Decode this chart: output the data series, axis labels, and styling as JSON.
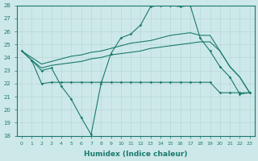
{
  "xlabel": "Humidex (Indice chaleur)",
  "bg_color": "#cde8e8",
  "grid_color": "#b8d8d8",
  "line_color": "#1a7a6e",
  "xlim": [
    -0.5,
    23.5
  ],
  "ylim": [
    18,
    28
  ],
  "yticks": [
    18,
    19,
    20,
    21,
    22,
    23,
    24,
    25,
    26,
    27,
    28
  ],
  "xticks": [
    0,
    1,
    2,
    3,
    4,
    5,
    6,
    7,
    8,
    9,
    10,
    11,
    12,
    13,
    14,
    15,
    16,
    17,
    18,
    19,
    20,
    21,
    22,
    23
  ],
  "line1_x": [
    0,
    1,
    2,
    3,
    4,
    5,
    6,
    7,
    8,
    9,
    10,
    11,
    12,
    13,
    14,
    15,
    16,
    17,
    18,
    19,
    20,
    21,
    22,
    23
  ],
  "line1_y": [
    24.5,
    23.8,
    23.0,
    23.2,
    21.8,
    20.8,
    19.4,
    18.1,
    22.0,
    24.3,
    25.5,
    25.8,
    26.5,
    27.9,
    28.0,
    28.0,
    27.9,
    28.0,
    25.5,
    24.5,
    23.3,
    22.5,
    21.2,
    21.3
  ],
  "line2_x": [
    1,
    2,
    3,
    4,
    5,
    6,
    7,
    8,
    9,
    10,
    11,
    12,
    13,
    14,
    15,
    16,
    17,
    18,
    19,
    20,
    21,
    22,
    23
  ],
  "line2_y": [
    23.8,
    22.0,
    22.1,
    22.1,
    22.1,
    22.1,
    22.1,
    22.1,
    22.1,
    22.1,
    22.1,
    22.1,
    22.1,
    22.1,
    22.1,
    22.1,
    22.1,
    22.1,
    22.1,
    21.3,
    21.3,
    21.3,
    21.3
  ],
  "line3_x": [
    0,
    1,
    2,
    3,
    4,
    5,
    6,
    7,
    8,
    9,
    10,
    11,
    12,
    13,
    14,
    15,
    16,
    17,
    18,
    19,
    20,
    21,
    22,
    23
  ],
  "line3_y": [
    24.5,
    23.8,
    23.2,
    23.4,
    23.5,
    23.6,
    23.7,
    23.9,
    24.0,
    24.2,
    24.3,
    24.4,
    24.5,
    24.7,
    24.8,
    24.9,
    25.0,
    25.1,
    25.2,
    25.2,
    24.5,
    23.3,
    22.5,
    21.3
  ],
  "line4_x": [
    0,
    1,
    2,
    3,
    4,
    5,
    6,
    7,
    8,
    9,
    10,
    11,
    12,
    13,
    14,
    15,
    16,
    17,
    18,
    19,
    20,
    21,
    22,
    23
  ],
  "line4_y": [
    24.5,
    24.0,
    23.5,
    23.7,
    23.9,
    24.1,
    24.2,
    24.4,
    24.5,
    24.7,
    24.9,
    25.1,
    25.2,
    25.3,
    25.5,
    25.7,
    25.8,
    25.9,
    25.7,
    25.7,
    24.5,
    23.3,
    22.5,
    21.3
  ]
}
